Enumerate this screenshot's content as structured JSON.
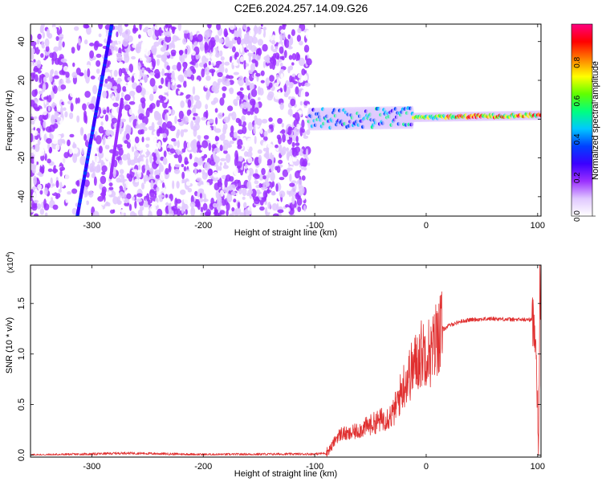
{
  "title": "C2E6.2024.257.14.09.G26",
  "chart_data": [
    {
      "type": "heatmap",
      "xlabel": "Height of straight line (km)",
      "ylabel": "Frequency (Hz)",
      "xlim": [
        -355,
        103
      ],
      "ylim": [
        -50,
        49
      ],
      "xticks": [
        -300,
        -200,
        -100,
        0,
        100
      ],
      "yticks": [
        -40,
        -20,
        0,
        20,
        40
      ],
      "colorbar": {
        "label": "Normalized spectral amplitude",
        "range": [
          0,
          1
        ],
        "ticks": [
          "0.0",
          "0.2",
          "0.4",
          "0.6",
          "0.8"
        ],
        "tick_values": [
          0.0,
          0.2,
          0.4,
          0.6,
          0.8
        ],
        "colors": [
          "#ffffff",
          "#e0c8ff",
          "#9b30ff",
          "#3a00ff",
          "#0040ff",
          "#00c8ff",
          "#00ff80",
          "#60ff00",
          "#ffff00",
          "#ff8000",
          "#ff0000",
          "#ff0080"
        ]
      },
      "features": {
        "noise_region_x": [
          -355,
          -105
        ],
        "signal_line": {
          "x": [
            -313,
            -282
          ],
          "y": [
            -50,
            49
          ]
        },
        "secondary_streak": {
          "x": [
            -283,
            -273
          ],
          "y": [
            -30,
            10
          ]
        },
        "carrier_track": {
          "x": [
            -105,
            103
          ],
          "y": [
            0,
            2
          ]
        }
      }
    },
    {
      "type": "line",
      "xlabel": "Height of straight line (km)",
      "ylabel": "SNR (10 * v/v)",
      "y_multiplier": "(x10",
      "y_multiplier_exp": "4",
      "y_multiplier_close": ")",
      "xlim": [
        -355,
        103
      ],
      "ylim": [
        -0.02,
        1.88
      ],
      "xticks": [
        -300,
        -200,
        -100,
        0,
        100
      ],
      "yticks": [
        "0.0",
        "0.5",
        "1.0",
        "1.5"
      ],
      "ytick_values": [
        0.0,
        0.5,
        1.0,
        1.5
      ],
      "series": [
        {
          "name": "SNR",
          "color": "#e03030",
          "x": [
            -355,
            -300,
            -270,
            -200,
            -130,
            -100,
            -90,
            -85,
            -80,
            -75,
            -70,
            -60,
            -50,
            -40,
            -30,
            -25,
            -20,
            -15,
            -10,
            -5,
            0,
            5,
            10,
            20,
            30,
            40,
            60,
            80,
            95,
            98,
            100,
            101,
            102,
            103
          ],
          "y": [
            0.0,
            0.01,
            0.02,
            0.005,
            0.01,
            0.01,
            0.02,
            0.08,
            0.18,
            0.22,
            0.2,
            0.25,
            0.3,
            0.35,
            0.4,
            0.55,
            0.7,
            0.8,
            0.9,
            1.0,
            1.05,
            1.0,
            1.2,
            1.28,
            1.32,
            1.34,
            1.35,
            1.34,
            1.34,
            1.25,
            0.5,
            0.1,
            1.7,
            1.3
          ]
        }
      ]
    }
  ]
}
